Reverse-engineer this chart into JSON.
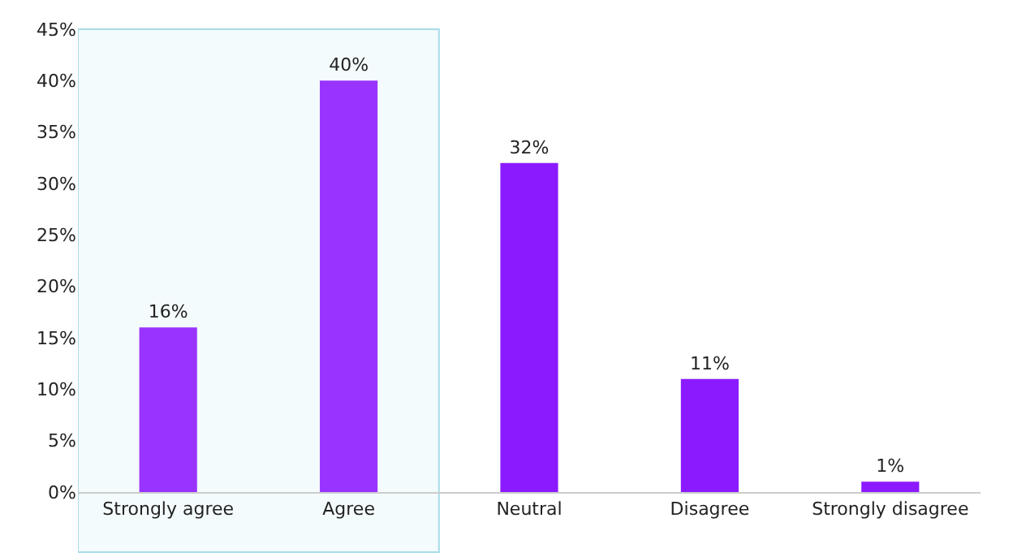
{
  "chart_data": {
    "type": "bar",
    "categories": [
      "Strongly agree",
      "Agree",
      "Neutral",
      "Disagree",
      "Strongly disagree"
    ],
    "values": [
      16,
      40,
      32,
      11,
      1
    ],
    "colors": [
      "#9933ff",
      "#9933ff",
      "#8c1aff",
      "#8c1aff",
      "#8c1aff"
    ],
    "value_labels": [
      "16%",
      "40%",
      "32%",
      "11%",
      "1%"
    ],
    "ylim": [
      0,
      45
    ],
    "yticks": [
      {
        "value": 0,
        "label": "0%"
      },
      {
        "value": 5,
        "label": "5%"
      },
      {
        "value": 10,
        "label": "10%"
      },
      {
        "value": 15,
        "label": "15%"
      },
      {
        "value": 20,
        "label": "20%"
      },
      {
        "value": 25,
        "label": "25%"
      },
      {
        "value": 30,
        "label": "30%"
      },
      {
        "value": 35,
        "label": "35%"
      },
      {
        "value": 40,
        "label": "40%"
      },
      {
        "value": 45,
        "label": "45%"
      }
    ],
    "bands": [
      {
        "axis": "x",
        "from": "Strongly agree",
        "to": "Agree",
        "color": "#a8dce8"
      }
    ],
    "grid": false
  }
}
